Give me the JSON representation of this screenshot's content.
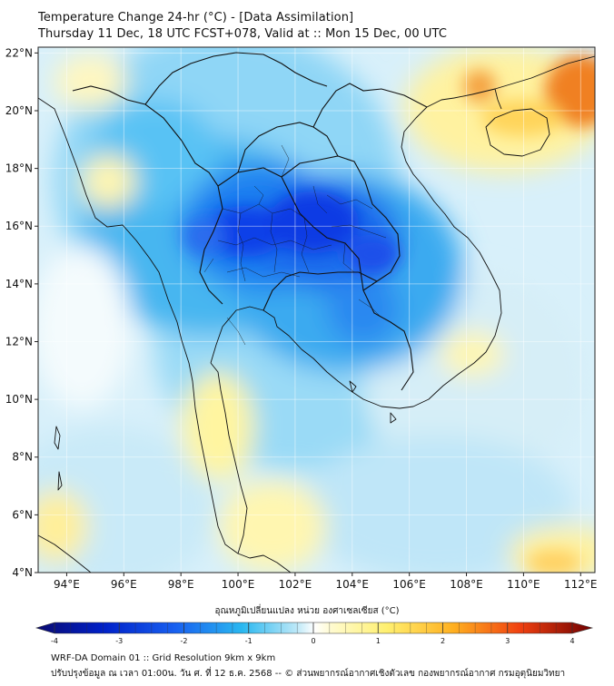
{
  "header": {
    "title_line1": "Temperature Change 24-hr (°C) - [Data Assimilation]",
    "title_line2": "Thursday 11 Dec, 18 UTC FCST+078, Valid at :: Mon 15 Dec, 00 UTC"
  },
  "map": {
    "lon_range": [
      93,
      112.5
    ],
    "lat_range": [
      4,
      22.2
    ],
    "lat_labels": [
      "4°N",
      "6°N",
      "8°N",
      "10°N",
      "12°N",
      "14°N",
      "16°N",
      "18°N",
      "20°N",
      "22°N"
    ],
    "lon_labels": [
      "94°E",
      "96°E",
      "98°E",
      "100°E",
      "102°E",
      "104°E",
      "106°E",
      "108°E",
      "110°E",
      "112°E"
    ]
  },
  "colorbar": {
    "title": "อุณหภูมิเปลี่ยนแปลง หน่วย องศาเซลเซียส (°C)",
    "range": [
      -4,
      4
    ],
    "tick_labels": [
      "-4",
      "-3",
      "-2",
      "-1",
      "0",
      "1",
      "2",
      "3",
      "4"
    ]
  },
  "footer": {
    "line1": "WRF-DA Domain 01 :: Grid Resolution 9km x 9km",
    "line2": "ปรับปรุงข้อมูล ณ เวลา 01:00น. วัน ศ. ที่ 12 ธ.ค. 2568 -- © ส่วนพยากรณ์อากาศเชิงตัวเลข กองพยากรณ์อากาศ กรมอุตุนิยมวิทยา"
  },
  "colors": {
    "strong_cool": "#1030e0",
    "cool": "#20b0f0",
    "neutral": "#e8f6fb",
    "warm": "#fff6a0",
    "hot": "#f07010",
    "coastline": "#111111"
  }
}
